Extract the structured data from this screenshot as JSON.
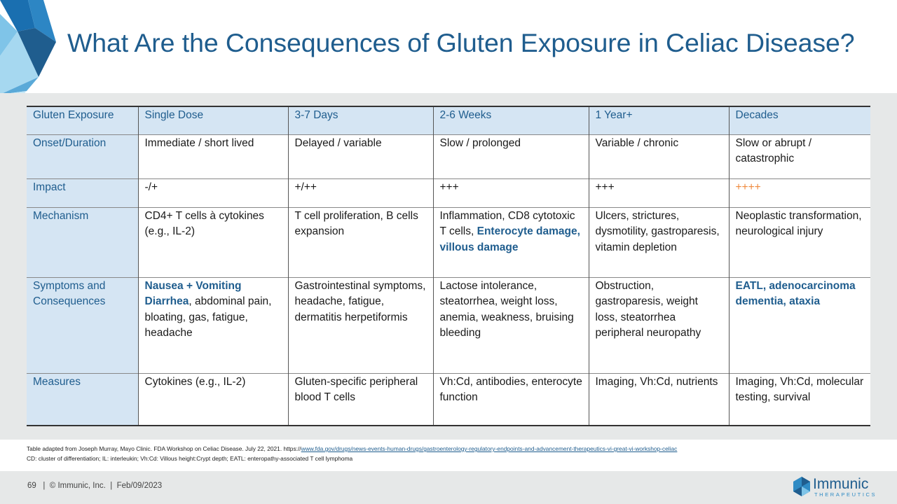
{
  "title": "What Are the Consequences of Gluten Exposure in Celiac Disease?",
  "table": {
    "header": [
      "Gluten Exposure",
      "Single Dose",
      "3-7 Days",
      "2-6 Weeks",
      "1 Year+",
      "Decades"
    ],
    "onset": {
      "label": "Onset/Duration",
      "cells": [
        "Immediate / short lived",
        "Delayed / variable",
        "Slow / prolonged",
        "Variable / chronic",
        "Slow or abrupt / catastrophic"
      ]
    },
    "impact": {
      "label": "Impact",
      "cells": [
        "-/+",
        "+/++",
        "+++",
        "+++",
        "++++"
      ]
    },
    "mechanism": {
      "label": "Mechanism",
      "c1": "CD4+ T cells à cytokines (e.g., IL-2)",
      "c2": "T cell proliferation, B cells expansion",
      "c3_plain": "Inflammation, CD8 cytotoxic T cells, ",
      "c3_highlight": "Enterocyte damage, villous damage",
      "c4": "Ulcers, strictures, dysmotility, gastroparesis, vitamin depletion",
      "c5": "Neoplastic transformation, neurological injury"
    },
    "symptoms": {
      "label": "Symptoms and Consequences",
      "c1_highlight": "Nausea + Vomiting Diarrhea",
      "c1_plain": ", abdominal pain, bloating, gas, fatigue, headache",
      "c2": "Gastrointestinal symptoms, headache, fatigue, dermatitis herpetiformis",
      "c3": "Lactose intolerance, steatorrhea, weight loss, anemia, weakness, bruising bleeding",
      "c4": "Obstruction, gastroparesis, weight loss, steatorrhea peripheral neuropathy",
      "c5_highlight": "EATL, adenocarcinoma dementia, ataxia"
    },
    "measures": {
      "label": "Measures",
      "cells": [
        "Cytokines (e.g., IL-2)",
        "Gluten-specific peripheral blood T cells",
        "Vh:Cd, antibodies, enterocyte function",
        "Imaging, Vh:Cd, nutrients",
        "Imaging, Vh:Cd, molecular testing, survival"
      ]
    }
  },
  "footnotes": {
    "line1_prefix": "Table adapted from Joseph Murray, Mayo Clinic. FDA Workshop on Celiac Disease. July 22, 2021. https://",
    "line1_link": "www.fda.gov/drugs/news-events-human-drugs/gastroenterology-regulatory-endpoints-and-advancement-therapeutics-vi-great-vi-workshop-celiac",
    "line2": "CD: cluster of differentiation; IL: interleukin; Vh:Cd: Villous height:Crypt depth; EATL: enteropathy-associated T cell lymphoma"
  },
  "footer": {
    "page_number": "69",
    "sep1": "|",
    "copyright": "© Immunic, Inc.",
    "sep2": "|",
    "date": "Feb/09/2023"
  },
  "brand": {
    "name": "Immunic",
    "tagline": "THERAPEUTICS"
  },
  "colors": {
    "accent_blue": "#1f5d8e",
    "header_fill": "#d5e5f3",
    "impact_orange": "#ef8a3d",
    "band_gray": "#e6e8e8"
  },
  "icons": {
    "corner_graphic": "blue-crystal-graphic",
    "brand_mark": "immunic-logo-mark"
  }
}
